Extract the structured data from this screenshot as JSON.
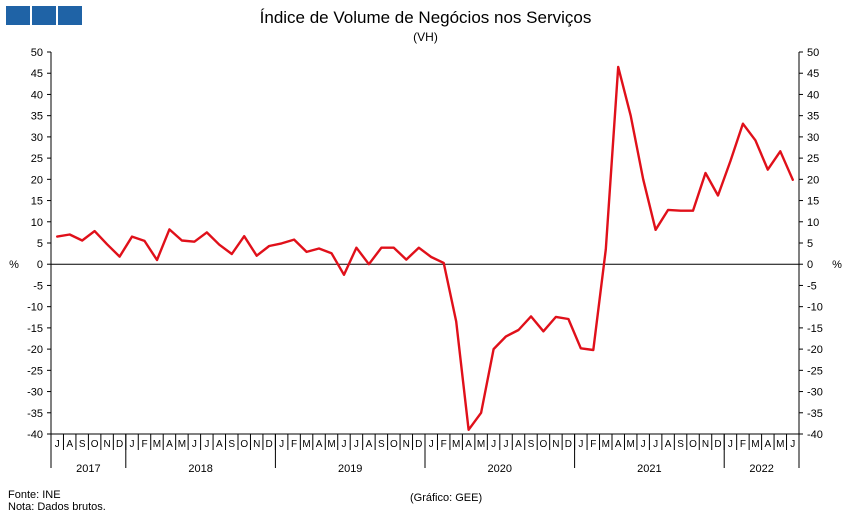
{
  "title": "Índice de Volume de Negócios nos Serviços",
  "subtitle": "(VH)",
  "footer": {
    "source": "Fonte: INE",
    "note": "Nota: Dados brutos.",
    "credit": "(Gráfico: GEE)"
  },
  "colors": {
    "line": "#e0101a",
    "logo": "#1f63a6",
    "axis": "#000000"
  },
  "chart_data": {
    "type": "line",
    "title": "Índice de Volume de Negócios nos Serviços",
    "subtitle": "(VH)",
    "ylabel": "%",
    "ylim": [
      -40,
      50
    ],
    "yticks": [
      50,
      45,
      40,
      35,
      30,
      25,
      20,
      15,
      10,
      5,
      0,
      -5,
      -10,
      -15,
      -20,
      -25,
      -30,
      -35,
      -40
    ],
    "grid": false,
    "month_labels": [
      "J",
      "A",
      "S",
      "O",
      "N",
      "D",
      "J",
      "F",
      "M",
      "A",
      "M",
      "J",
      "J",
      "A",
      "S",
      "O",
      "N",
      "D",
      "J",
      "F",
      "M",
      "A",
      "M",
      "J",
      "J",
      "A",
      "S",
      "O",
      "N",
      "D",
      "J",
      "F",
      "M",
      "A",
      "M",
      "J",
      "J",
      "A",
      "S",
      "O",
      "N",
      "D",
      "J",
      "F",
      "M",
      "A",
      "M",
      "J",
      "J",
      "A",
      "S",
      "O",
      "N",
      "D",
      "J",
      "F",
      "M",
      "A",
      "M",
      "J"
    ],
    "years": [
      {
        "label": "2017",
        "months": 6
      },
      {
        "label": "2018",
        "months": 12
      },
      {
        "label": "2019",
        "months": 12
      },
      {
        "label": "2020",
        "months": 12
      },
      {
        "label": "2021",
        "months": 12
      },
      {
        "label": "2022",
        "months": 6
      }
    ],
    "series": [
      {
        "values": [
          6.5,
          7.0,
          5.6,
          7.8,
          4.7,
          1.8,
          6.5,
          5.5,
          1.0,
          8.2,
          5.6,
          5.3,
          7.5,
          4.6,
          2.4,
          6.6,
          2.0,
          4.3,
          4.9,
          5.8,
          2.9,
          3.7,
          2.6,
          -2.5,
          3.9,
          0.0,
          3.9,
          3.9,
          1.1,
          3.9,
          1.7,
          0.3,
          -13.5,
          -39.0,
          -35.0,
          -20.0,
          -17.0,
          -15.5,
          -12.3,
          -15.8,
          -12.4,
          -12.9,
          -19.8,
          -20.2,
          3.5,
          46.5,
          35.0,
          20.0,
          8.1,
          12.8,
          12.6,
          12.6,
          21.5,
          16.2,
          24.3,
          33.1,
          29.2,
          22.3,
          26.6,
          19.9
        ]
      }
    ]
  }
}
